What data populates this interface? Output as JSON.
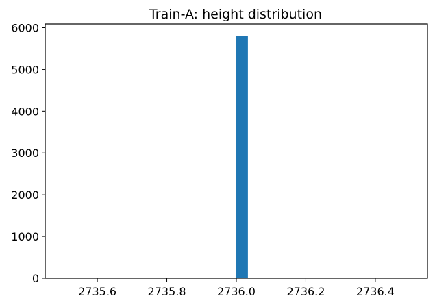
{
  "chart_data": {
    "type": "bar",
    "title": "Train-A: height distribution",
    "xlabel": "",
    "ylabel": "",
    "xlim": [
      2735.45,
      2736.55
    ],
    "ylim": [
      0,
      6090
    ],
    "x_ticks": [
      2735.6,
      2735.8,
      2736.0,
      2736.2,
      2736.4
    ],
    "x_tick_labels": [
      "2735.6",
      "2735.8",
      "2736.0",
      "2736.2",
      "2736.4"
    ],
    "y_ticks": [
      0,
      1000,
      2000,
      3000,
      4000,
      5000,
      6000
    ],
    "y_tick_labels": [
      "0",
      "1000",
      "2000",
      "3000",
      "4000",
      "5000",
      "6000"
    ],
    "bins": [
      {
        "x0": 2735.9667,
        "x1": 2736.0,
        "count": 0
      },
      {
        "x0": 2736.0,
        "x1": 2736.0333,
        "count": 5800
      }
    ],
    "bar_color": "#1f77b4",
    "grid": false,
    "legend": "none"
  }
}
